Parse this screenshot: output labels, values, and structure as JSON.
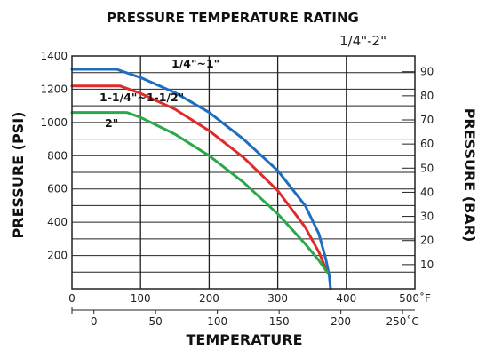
{
  "chart_data": {
    "type": "line",
    "title": "PRESSURE TEMPERATURE RATING",
    "subtitle": "1/4\"-2\"",
    "xlabel": "TEMPERATURE",
    "ylabel_left": "PRESSURE (PSI)",
    "ylabel_right": "PRESSURE (BAR)",
    "x_primary": {
      "ticks": [
        0,
        100,
        200,
        300,
        400,
        500
      ],
      "tick_labels": [
        "0",
        "100",
        "200",
        "300",
        "400",
        "500˚F"
      ],
      "range": [
        0,
        500
      ]
    },
    "x_secondary": {
      "ticks": [
        0,
        50,
        100,
        150,
        200,
        250
      ],
      "tick_labels": [
        "0",
        "50",
        "100",
        "150",
        "200",
        "250˚C"
      ]
    },
    "y_left": {
      "ticks": [
        200,
        400,
        600,
        800,
        1000,
        1200,
        1400
      ],
      "tick_labels": [
        "200",
        "400",
        "600",
        "800",
        "1000",
        "1200",
        "1400"
      ],
      "range": [
        0,
        1400
      ]
    },
    "y_right": {
      "ticks": [
        10,
        20,
        30,
        40,
        50,
        60,
        70,
        80,
        90
      ],
      "tick_labels": [
        "10",
        "20",
        "30",
        "40",
        "50",
        "60",
        "70",
        "80",
        "90"
      ]
    },
    "grid": true,
    "series": [
      {
        "name": "1/4\"~1\"",
        "color": "#1f6fc0",
        "points": [
          [
            0,
            1320
          ],
          [
            65,
            1320
          ],
          [
            100,
            1270
          ],
          [
            150,
            1180
          ],
          [
            200,
            1060
          ],
          [
            250,
            900
          ],
          [
            300,
            710
          ],
          [
            340,
            500
          ],
          [
            360,
            330
          ],
          [
            370,
            180
          ],
          [
            375,
            80
          ],
          [
            377,
            0
          ]
        ]
      },
      {
        "name": "1-1/4\"~1-1/2\"",
        "color": "#e02b2b",
        "points": [
          [
            0,
            1220
          ],
          [
            70,
            1220
          ],
          [
            100,
            1175
          ],
          [
            150,
            1080
          ],
          [
            200,
            950
          ],
          [
            250,
            790
          ],
          [
            300,
            590
          ],
          [
            340,
            370
          ],
          [
            360,
            220
          ],
          [
            372,
            100
          ]
        ]
      },
      {
        "name": "2\"",
        "color": "#2aa84a",
        "points": [
          [
            0,
            1060
          ],
          [
            80,
            1060
          ],
          [
            100,
            1030
          ],
          [
            150,
            930
          ],
          [
            200,
            800
          ],
          [
            250,
            640
          ],
          [
            300,
            450
          ],
          [
            340,
            270
          ],
          [
            360,
            170
          ],
          [
            372,
            100
          ]
        ]
      }
    ]
  }
}
